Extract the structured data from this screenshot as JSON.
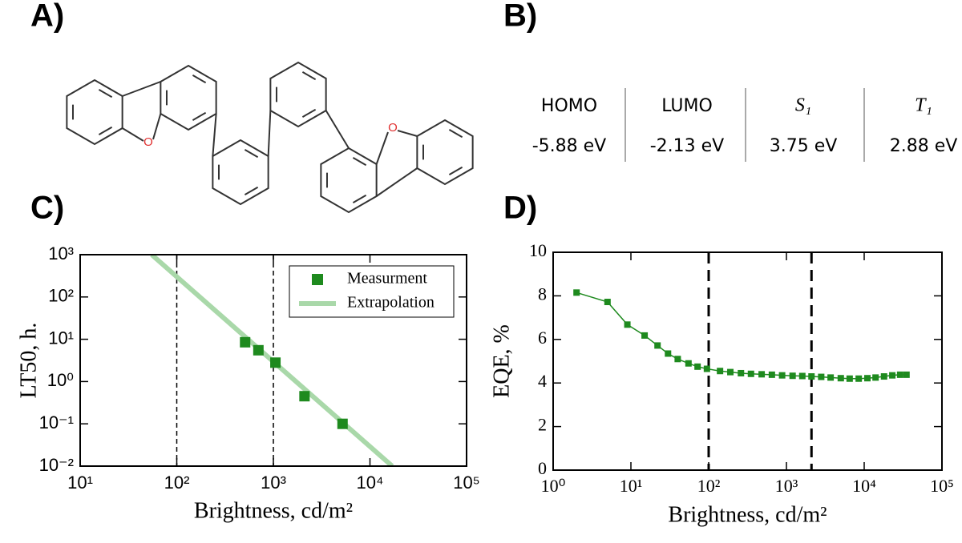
{
  "panel_labels": [
    "A)",
    "B)",
    "C)",
    "D)"
  ],
  "molecule": {
    "atoms": [
      "O",
      "O"
    ]
  },
  "table": {
    "headers": [
      "HOMO",
      "LUMO",
      "S₁",
      "T₁"
    ],
    "rows": [
      [
        "-5.88 eV",
        "-2.13 eV",
        "3.75 eV",
        "2.88 eV"
      ]
    ]
  },
  "chart_data": [
    {
      "type": "scatter",
      "xlabel": "Brightness, cd/m²",
      "ylabel": "LT50, h.",
      "xscale": "log",
      "yscale": "log",
      "xlim": [
        10,
        100000
      ],
      "ylim": [
        0.01,
        1000
      ],
      "xticks": [
        {
          "value": 10,
          "label": "10¹"
        },
        {
          "value": 100,
          "label": "10²"
        },
        {
          "value": 1000,
          "label": "10³"
        },
        {
          "value": 10000,
          "label": "10⁴"
        },
        {
          "value": 100000,
          "label": "10⁵"
        }
      ],
      "yticks": [
        {
          "value": 0.01,
          "label": "10⁻²"
        },
        {
          "value": 0.1,
          "label": "10⁻¹"
        },
        {
          "value": 1,
          "label": "10⁰"
        },
        {
          "value": 10,
          "label": "10¹"
        },
        {
          "value": 100,
          "label": "10²"
        },
        {
          "value": 1000,
          "label": "10³"
        }
      ],
      "vlines": [
        100,
        1000
      ],
      "legend": "upper right",
      "series": [
        {
          "name": "Measurment",
          "type": "scatter",
          "color": "#1e8a1e",
          "x": [
            510,
            700,
            1050,
            2100,
            5200
          ],
          "values": [
            8.5,
            5.5,
            2.8,
            0.45,
            0.1
          ]
        },
        {
          "name": "Extrapolation",
          "type": "line",
          "color": "#a9d8a9",
          "x": [
            55,
            17000
          ],
          "values": [
            1000,
            0.01
          ]
        }
      ]
    },
    {
      "type": "line",
      "xlabel": "Brightness, cd/m²",
      "ylabel": "EQE, %",
      "xscale": "log",
      "yscale": "linear",
      "xlim": [
        1,
        100000
      ],
      "ylim": [
        0,
        10
      ],
      "xticks": [
        {
          "value": 1,
          "label": "10⁰"
        },
        {
          "value": 10,
          "label": "10¹"
        },
        {
          "value": 100,
          "label": "10²"
        },
        {
          "value": 1000,
          "label": "10³"
        },
        {
          "value": 10000,
          "label": "10⁴"
        },
        {
          "value": 100000,
          "label": "10⁵"
        }
      ],
      "yticks": [
        0,
        2,
        4,
        6,
        8,
        10
      ],
      "vlines": [
        100,
        2100
      ],
      "series": [
        {
          "type": "line",
          "color": "#1e8a1e",
          "x": [
            2,
            5,
            9,
            15,
            22,
            30,
            40,
            55,
            72,
            95,
            140,
            190,
            260,
            350,
            480,
            650,
            880,
            1200,
            1600,
            2100,
            2800,
            3700,
            5000,
            6500,
            8500,
            11000,
            14000,
            18000,
            23000,
            29000,
            35000
          ],
          "values": [
            8.15,
            7.72,
            6.68,
            6.18,
            5.72,
            5.35,
            5.1,
            4.9,
            4.75,
            4.65,
            4.55,
            4.5,
            4.45,
            4.42,
            4.4,
            4.38,
            4.35,
            4.33,
            4.32,
            4.3,
            4.28,
            4.25,
            4.22,
            4.2,
            4.2,
            4.22,
            4.25,
            4.3,
            4.35,
            4.38,
            4.38
          ]
        }
      ]
    }
  ]
}
